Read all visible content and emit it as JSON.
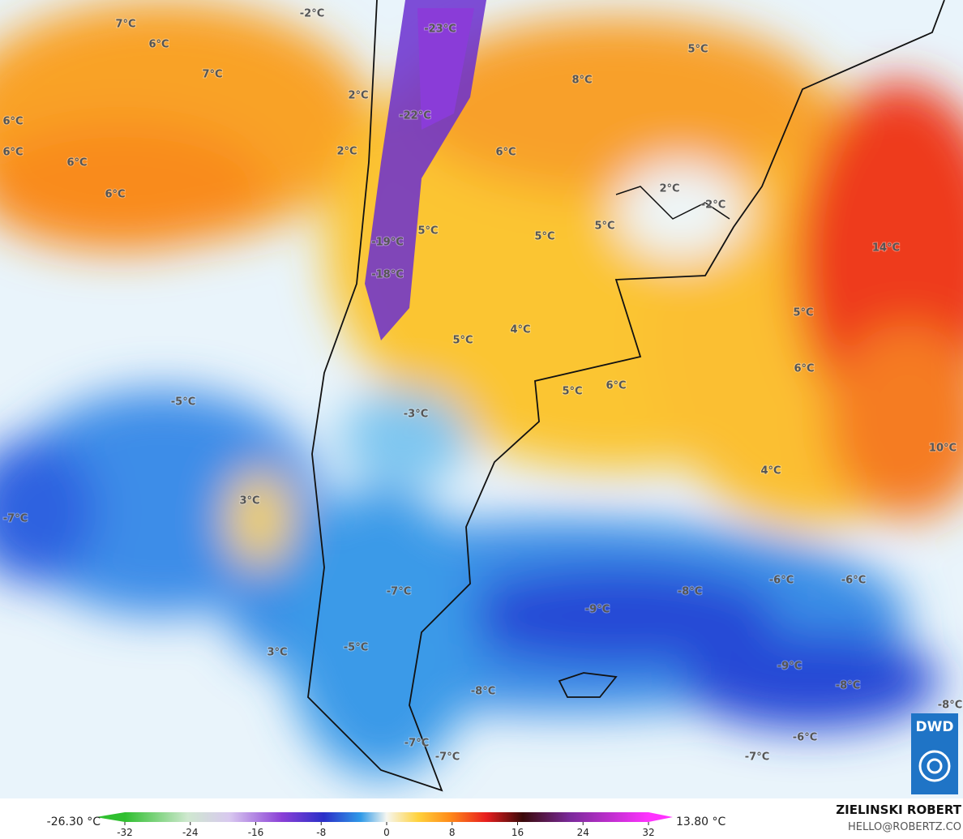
{
  "map_labels": [
    "-2°C",
    "7°C",
    "6°C",
    "7°C",
    "-23°C",
    "8°C",
    "5°C",
    "2°C",
    "-22°C",
    "6°C",
    "6°C",
    "6°C",
    "6°C",
    "2°C",
    "6°C",
    "2°C",
    "-2°C",
    "5°C",
    "5°C",
    "5°C",
    "14°C",
    "-19°C",
    "-18°C",
    "5°C",
    "5°C",
    "4°C",
    "6°C",
    "-5°C",
    "5°C",
    "6°C",
    "-3°C",
    "10°C",
    "4°C",
    "3°C",
    "-7°C",
    "-6°C",
    "-6°C",
    "-8°C",
    "-7°C",
    "-9°C",
    "-5°C",
    "3°C",
    "-9°C",
    "-8°C",
    "-8°C",
    "-8°C",
    "-6°C",
    "-7°C",
    "-7°C",
    "-7°C"
  ],
  "colorbar": {
    "min_label": "-26.30 °C",
    "max_label": "13.80 °C",
    "range": [
      -32,
      32
    ],
    "ticks": [
      -32,
      -24,
      -16,
      -8,
      0,
      8,
      16,
      24,
      32
    ]
  },
  "credit": {
    "name": "ZIELINSKI ROBERT",
    "contact": "HELLO@ROBERTZ.CO"
  },
  "logo": "DWD"
}
